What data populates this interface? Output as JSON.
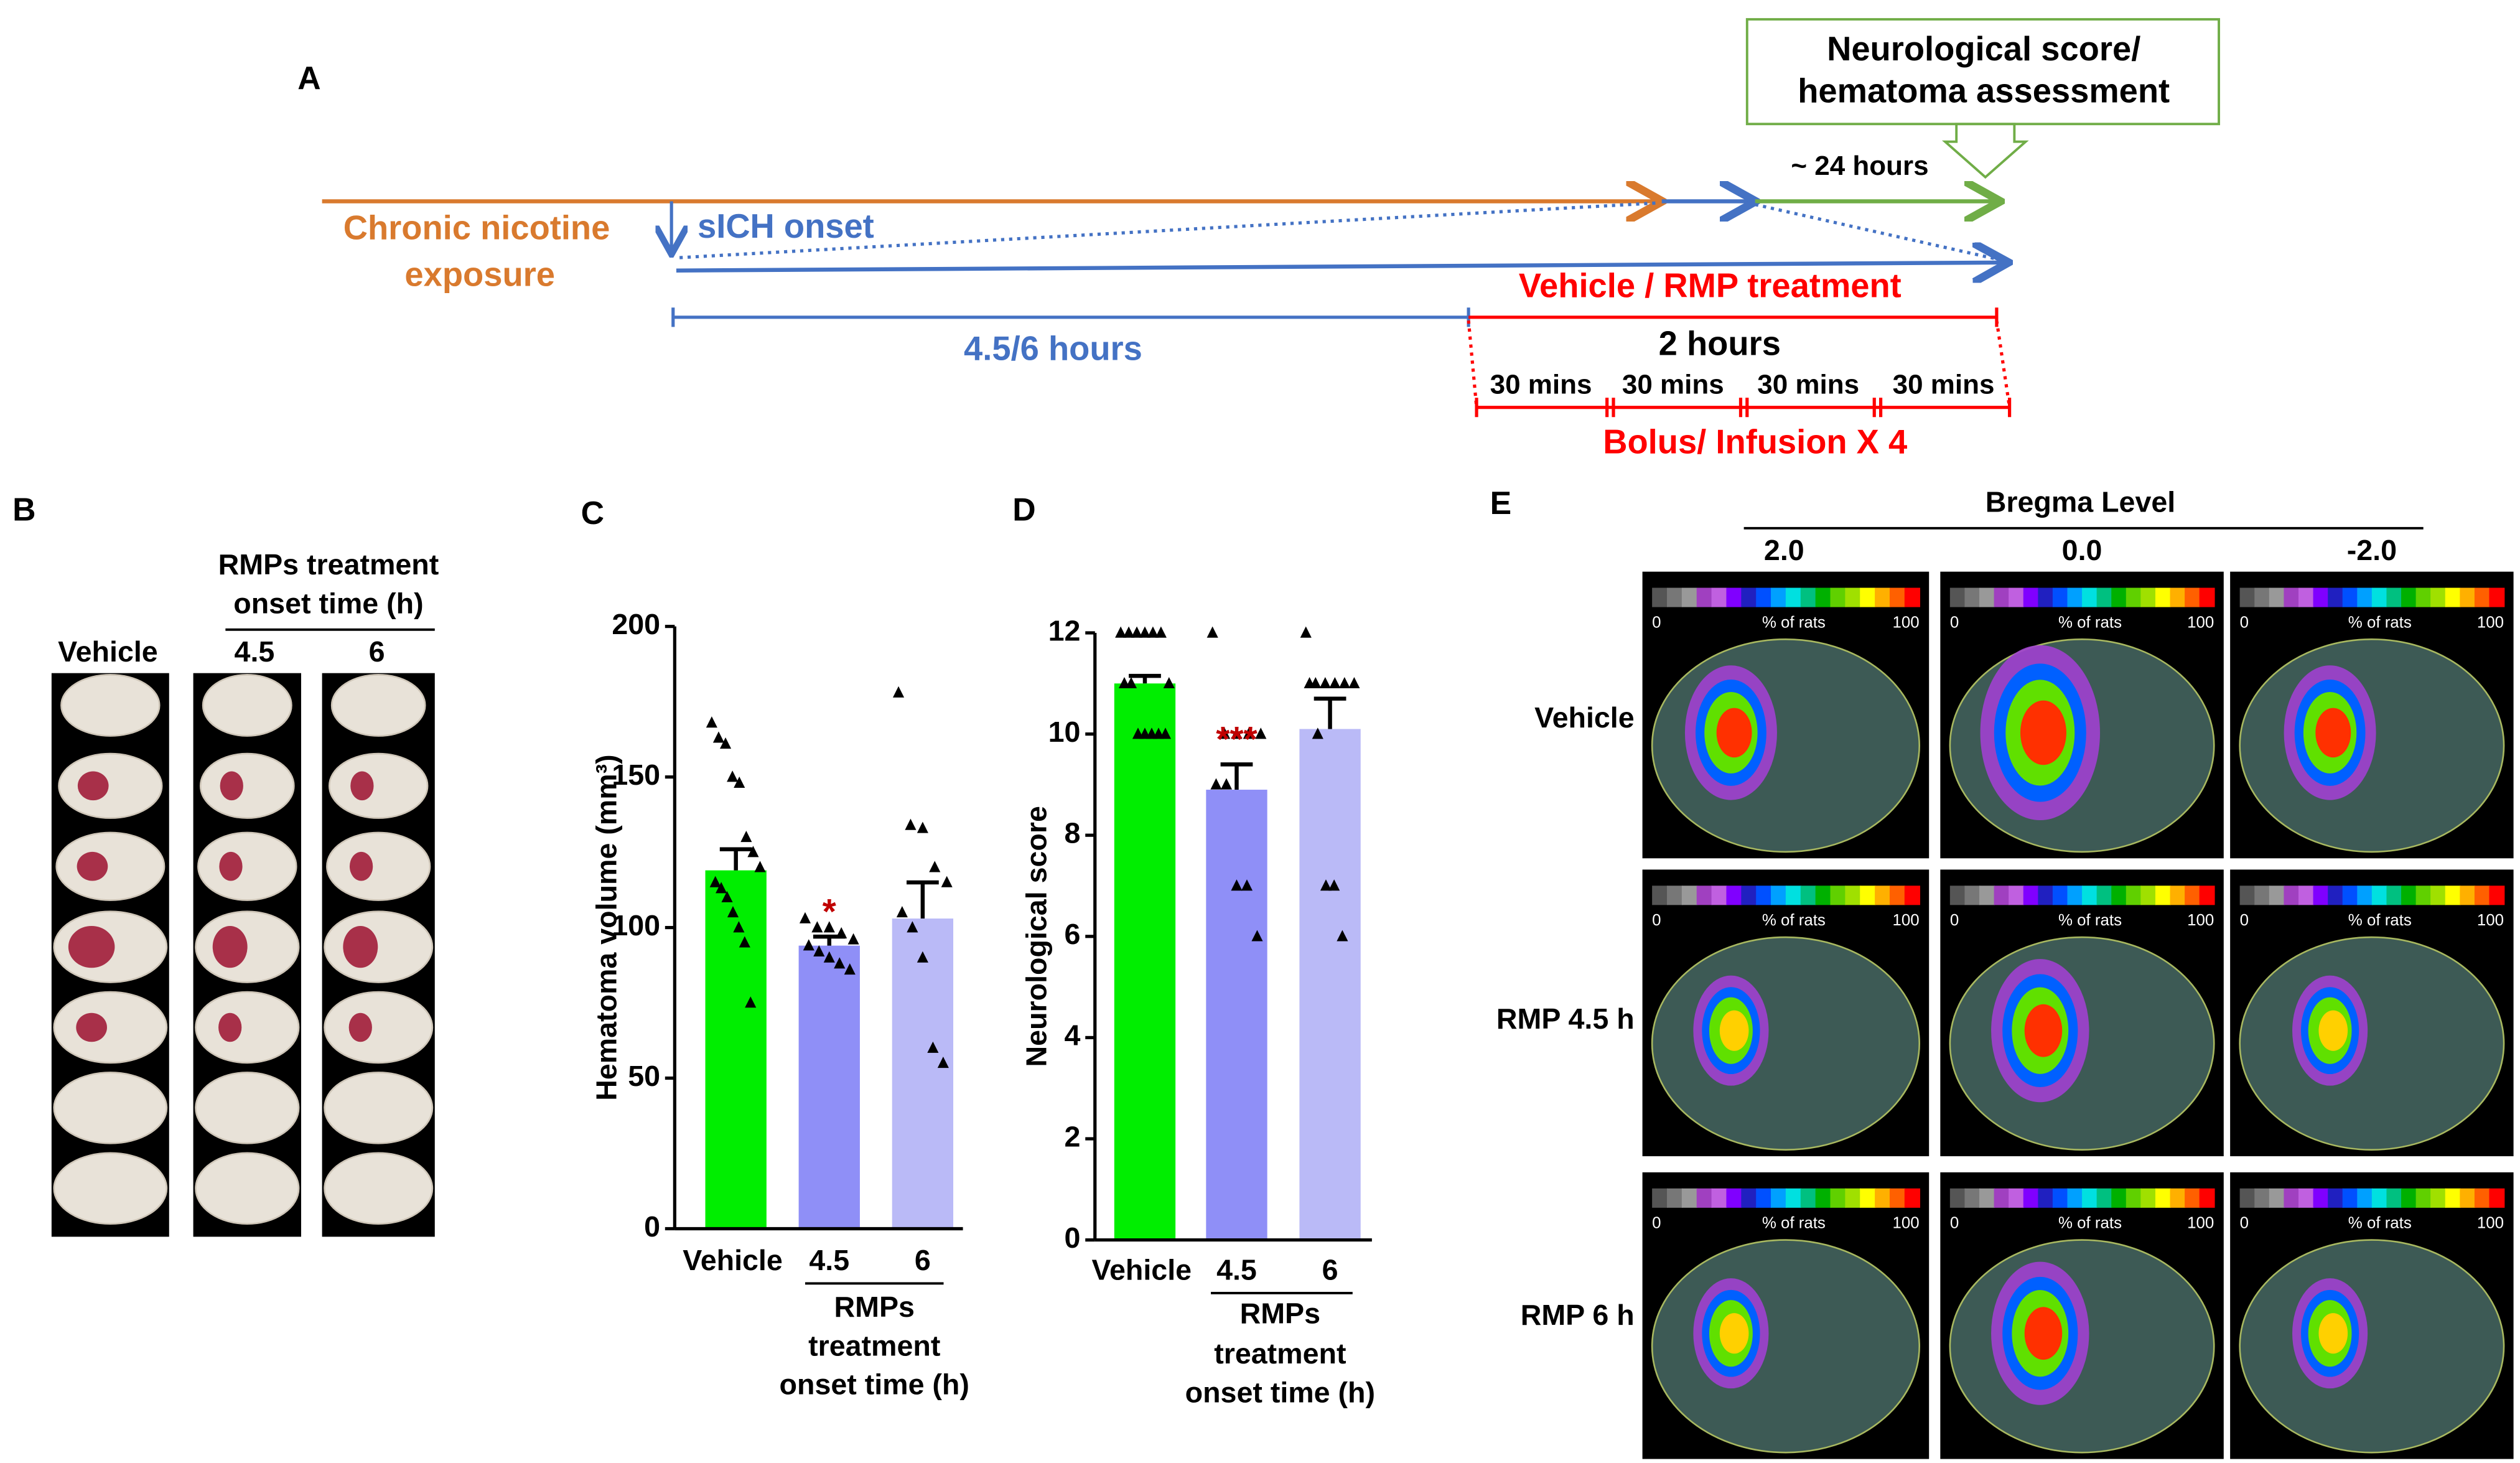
{
  "panel_labels": [
    "A",
    "B",
    "C",
    "D",
    "E"
  ],
  "timeline": {
    "assessment": [
      "Neurological score/",
      "hematoma assessment"
    ],
    "assessment_delay": "~ 24 hours",
    "exposure": [
      "Chronic nicotine",
      "exposure"
    ],
    "onset": "sICH onset",
    "treatment": "Vehicle / RMP treatment",
    "delay": "4.5/6 hours",
    "duration": "2 hours",
    "intervals": [
      "30 mins",
      "30 mins",
      "30 mins",
      "30 mins"
    ],
    "dosing": "Bolus/ Infusion X 4"
  },
  "panel_b": {
    "group_title": [
      "RMPs treatment",
      "onset time (h)"
    ],
    "columns": [
      "Vehicle",
      "4.5",
      "6"
    ]
  },
  "chart_data": [
    {
      "type": "bar",
      "y_label": "Hematoma volume (mm³)",
      "categories": [
        "Vehicle",
        "4.5",
        "6"
      ],
      "group_label": [
        "RMPs",
        "treatment",
        "onset time (h)"
      ],
      "values": [
        119,
        94,
        103
      ],
      "errors": [
        7,
        3,
        12
      ],
      "colors": [
        "#00ee00",
        "#8f8ff7",
        "#babaf7"
      ],
      "points": [
        [
          168,
          163,
          161,
          150,
          148,
          130,
          125,
          120,
          115,
          113,
          110,
          105,
          100,
          95,
          75
        ],
        [
          103,
          100,
          100,
          98,
          96,
          94,
          92,
          90,
          88,
          86
        ],
        [
          178,
          134,
          133,
          120,
          115,
          105,
          100,
          90,
          60,
          55
        ]
      ],
      "significance": [
        null,
        "*",
        null
      ],
      "significance_color": "#c00000",
      "ylim": [
        0,
        200
      ],
      "yticks": [
        0,
        50,
        100,
        150,
        200
      ]
    },
    {
      "type": "bar",
      "y_label": "Neurological score",
      "categories": [
        "Vehicle",
        "4.5",
        "6"
      ],
      "group_label": [
        "RMPs",
        "treatment",
        "onset time (h)"
      ],
      "values": [
        11,
        8.9,
        10.1
      ],
      "errors": [
        0.15,
        0.5,
        0.6
      ],
      "colors": [
        "#00ee00",
        "#8f8ff7",
        "#babaf7"
      ],
      "points": [
        [
          12,
          12,
          12,
          12,
          12,
          12,
          11,
          11,
          11,
          10,
          10,
          10,
          10,
          10
        ],
        [
          12,
          10,
          10,
          10,
          10,
          9,
          9,
          7,
          7,
          6
        ],
        [
          12,
          11,
          11,
          11,
          11,
          11,
          11,
          10,
          7,
          7,
          6
        ]
      ],
      "significance": [
        null,
        "***",
        null
      ],
      "significance_color": "#c00000",
      "ylim": [
        0,
        12
      ],
      "yticks": [
        0,
        2,
        4,
        6,
        8,
        10,
        12
      ]
    }
  ],
  "panel_e": {
    "title": "Bregma Level",
    "levels": [
      "2.0",
      "0.0",
      "-2.0"
    ],
    "groups": [
      "Vehicle",
      "RMP 4.5 h",
      "RMP 6 h"
    ],
    "colorbar": {
      "min": "0",
      "label": "% of rats",
      "max": "100"
    }
  }
}
